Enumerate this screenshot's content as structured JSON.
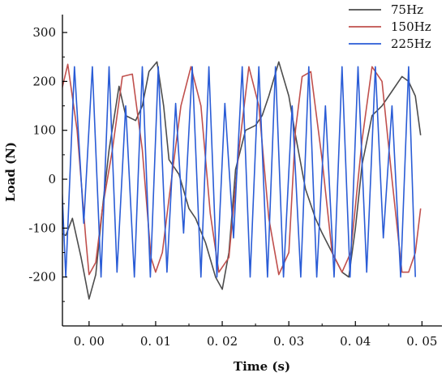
{
  "chart_data": {
    "type": "line",
    "title": "",
    "xlabel": "Time (s)",
    "ylabel": "Load (N)",
    "xlim": [
      -0.004,
      0.053
    ],
    "ylim": [
      -300,
      330
    ],
    "xticks": [
      0.0,
      0.01,
      0.02,
      0.03,
      0.04,
      0.05
    ],
    "xtick_labels": [
      "0. 00",
      "0. 01",
      "0. 02",
      "0. 03",
      "0. 04",
      "0. 05"
    ],
    "yticks": [
      -200,
      -100,
      0,
      100,
      200,
      300
    ],
    "ytick_labels": [
      "-200",
      "-100",
      "0",
      "100",
      "200",
      "300"
    ],
    "grid": false,
    "legend_position": "top-right",
    "series": [
      {
        "name": "75Hz",
        "color": "#4d4d4d",
        "x": [
          -0.0042,
          -0.0035,
          -0.0025,
          -0.0012,
          0.0,
          0.001,
          0.002,
          0.003,
          0.0045,
          0.0055,
          0.007,
          0.008,
          0.009,
          0.0102,
          0.0112,
          0.012,
          0.0135,
          0.015,
          0.016,
          0.0175,
          0.019,
          0.02,
          0.021,
          0.022,
          0.0235,
          0.025,
          0.026,
          0.027,
          0.0285,
          0.03,
          0.031,
          0.0325,
          0.034,
          0.035,
          0.0365,
          0.038,
          0.039,
          0.04,
          0.041,
          0.0425,
          0.044,
          0.0455,
          0.047,
          0.048,
          0.049,
          0.0498
        ],
        "y": [
          -110,
          -115,
          -80,
          -160,
          -245,
          -195,
          -60,
          60,
          190,
          130,
          120,
          150,
          220,
          240,
          150,
          40,
          10,
          -60,
          -80,
          -130,
          -200,
          -225,
          -150,
          20,
          100,
          110,
          130,
          170,
          240,
          170,
          90,
          -20,
          -80,
          -110,
          -150,
          -190,
          -200,
          -100,
          30,
          130,
          150,
          180,
          210,
          200,
          170,
          90
        ]
      },
      {
        "name": "150Hz",
        "color": "#c0504d",
        "x": [
          -0.0045,
          -0.0032,
          -0.0018,
          -0.0005,
          0.0,
          0.001,
          0.002,
          0.0035,
          0.005,
          0.0065,
          0.008,
          0.0093,
          0.01,
          0.011,
          0.012,
          0.0138,
          0.0153,
          0.0168,
          0.0182,
          0.0195,
          0.021,
          0.0225,
          0.024,
          0.0255,
          0.027,
          0.0285,
          0.03,
          0.031,
          0.032,
          0.0333,
          0.035,
          0.0365,
          0.038,
          0.0393,
          0.041,
          0.0425,
          0.044,
          0.0455,
          0.047,
          0.048,
          0.049,
          0.0498
        ],
        "y": [
          160,
          235,
          100,
          -120,
          -195,
          -170,
          -60,
          60,
          210,
          215,
          60,
          -160,
          -190,
          -150,
          -40,
          150,
          230,
          150,
          -70,
          -190,
          -160,
          60,
          230,
          150,
          -80,
          -195,
          -150,
          100,
          210,
          220,
          40,
          -150,
          -190,
          -150,
          80,
          230,
          200,
          0,
          -190,
          -190,
          -150,
          -60
        ]
      },
      {
        "name": "225Hz",
        "color": "#2a5cd6",
        "x": [
          -0.0045,
          -0.0035,
          -0.0022,
          -0.0008,
          0.0005,
          0.0018,
          0.003,
          0.0042,
          0.0055,
          0.0068,
          0.008,
          0.0092,
          0.0104,
          0.0117,
          0.013,
          0.0142,
          0.0155,
          0.0168,
          0.018,
          0.0192,
          0.0204,
          0.0217,
          0.023,
          0.0242,
          0.0255,
          0.0268,
          0.028,
          0.0292,
          0.0305,
          0.0318,
          0.033,
          0.0342,
          0.0355,
          0.0368,
          0.038,
          0.0392,
          0.0404,
          0.0417,
          0.043,
          0.0442,
          0.0455,
          0.0468,
          0.048,
          0.049
        ],
        "y": [
          120,
          -200,
          230,
          -90,
          230,
          -200,
          230,
          -190,
          150,
          -200,
          230,
          -200,
          230,
          -190,
          155,
          -110,
          230,
          -200,
          230,
          -200,
          155,
          -120,
          230,
          -200,
          230,
          -200,
          230,
          -200,
          150,
          -200,
          230,
          -200,
          150,
          -200,
          230,
          -200,
          230,
          -190,
          230,
          -120,
          150,
          -200,
          230,
          -200
        ]
      }
    ]
  }
}
